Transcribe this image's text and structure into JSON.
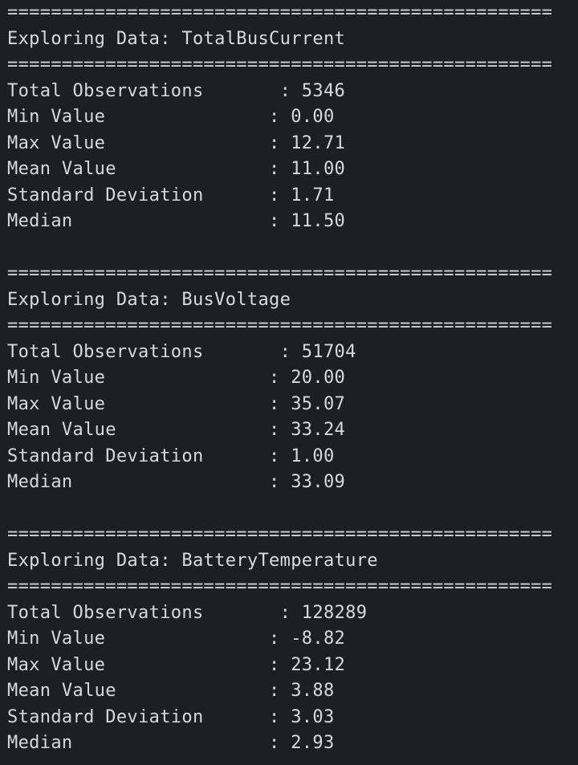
{
  "console": {
    "lines": [
      "==================================================",
      "Exploring Data: TotalBusCurrent",
      "==================================================",
      "Total Observations       : 5346",
      "Min Value               : 0.00",
      "Max Value               : 12.71",
      "Mean Value              : 11.00",
      "Standard Deviation      : 1.71",
      "Median                  : 11.50",
      "",
      "==================================================",
      "Exploring Data: BusVoltage",
      "==================================================",
      "Total Observations       : 51704",
      "Min Value               : 20.00",
      "Max Value               : 35.07",
      "Mean Value              : 33.24",
      "Standard Deviation      : 1.00",
      "Median                  : 33.09",
      "",
      "==================================================",
      "Exploring Data: BatteryTemperature",
      "==================================================",
      "Total Observations       : 128289",
      "Min Value               : -8.82",
      "Max Value               : 23.12",
      "Mean Value              : 3.88",
      "Standard Deviation      : 3.03",
      "Median                  : 2.93"
    ]
  }
}
